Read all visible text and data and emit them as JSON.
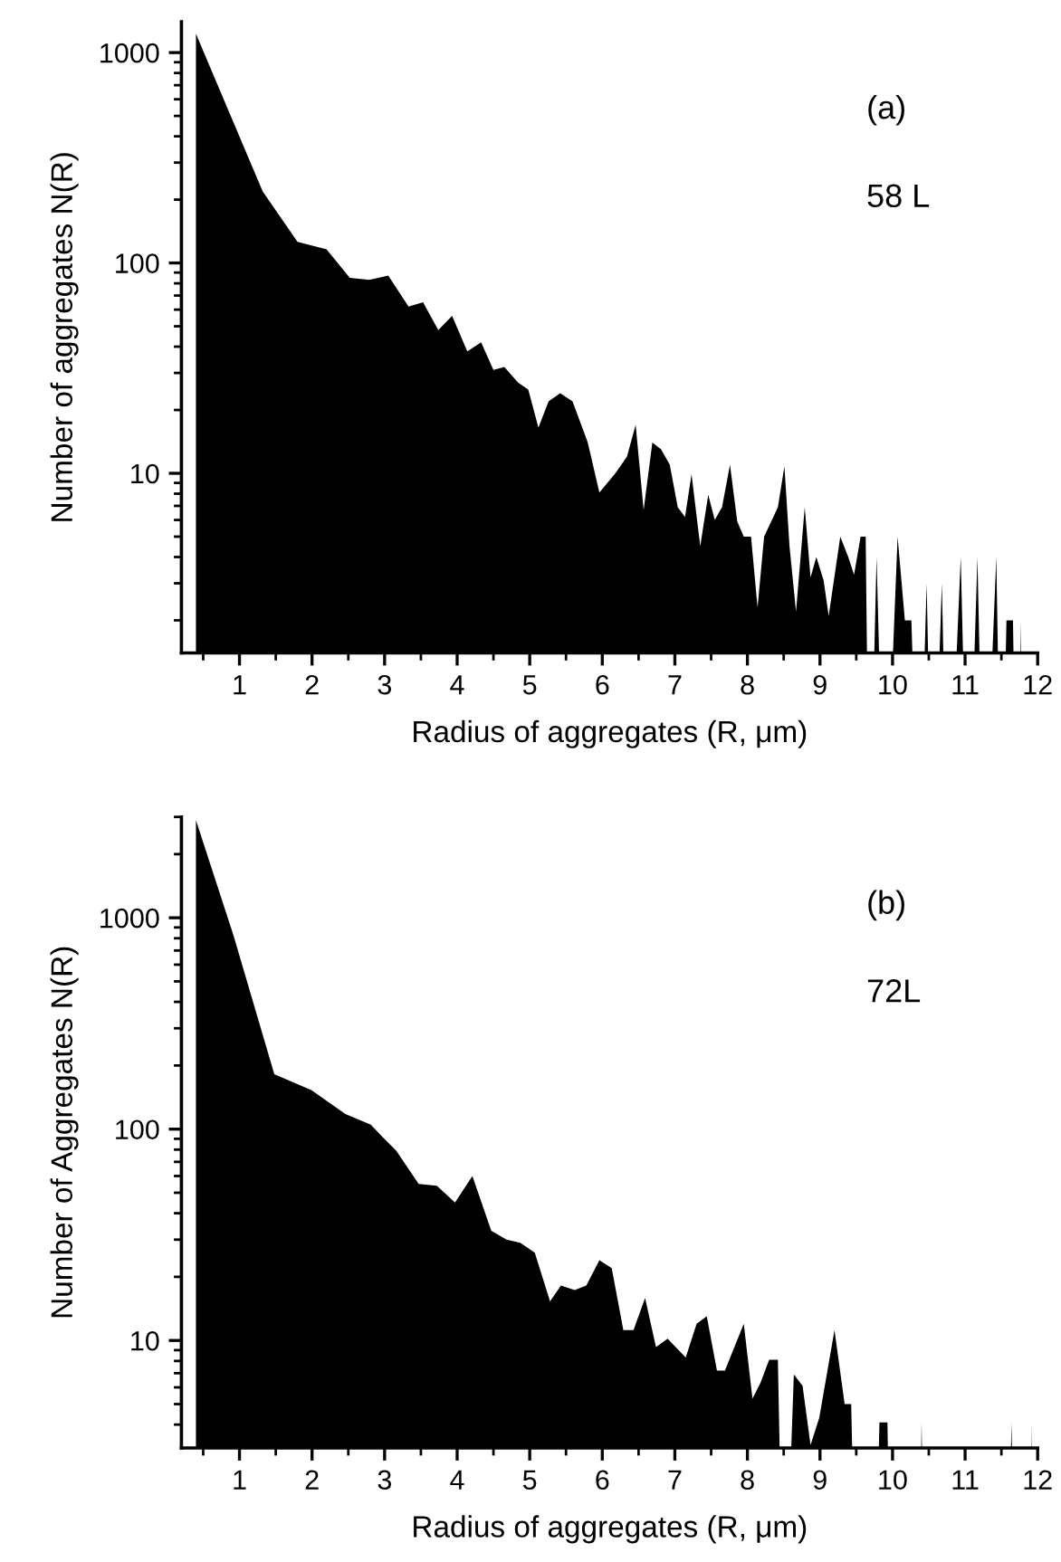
{
  "chart_data": [
    {
      "type": "area",
      "xlabel": "Radius of aggregates (R, μm)",
      "ylabel": "Number of aggregates N(R)",
      "annotations": [
        "(a)",
        "58 L"
      ],
      "log": "y",
      "grid": false,
      "legend": false,
      "xlim": [
        0.2,
        12
      ],
      "xticks": [
        1,
        2,
        3,
        4,
        5,
        6,
        7,
        8,
        9,
        10,
        11,
        12
      ],
      "ylim": [
        1.4,
        1400
      ],
      "yticks": [
        10,
        100,
        1000
      ],
      "series": [
        {
          "color": "#000000",
          "x": [
            0.4,
            1.32,
            1.8,
            2.2,
            2.52,
            2.79,
            3.05,
            3.33,
            3.53,
            3.74,
            3.93,
            4.14,
            4.33,
            4.5,
            4.65,
            4.84,
            4.98,
            5.12,
            5.26,
            5.42,
            5.59,
            5.8,
            5.96,
            6.18,
            6.34,
            6.46,
            6.57,
            6.69,
            6.81,
            6.93,
            7.04,
            7.14,
            7.23,
            7.35,
            7.46,
            7.55,
            7.65,
            7.76,
            7.86,
            7.95,
            8.05,
            8.14,
            8.23,
            8.42,
            8.51,
            8.58,
            8.67,
            8.79,
            8.87,
            8.95,
            9.05,
            9.12,
            9.28,
            9.39,
            9.47,
            9.56,
            9.63,
            9.68,
            9.78,
            9.89,
            10.07,
            10.17,
            10.26,
            10.36,
            10.47,
            10.55,
            10.68,
            10.76,
            10.94,
            11.04,
            11.17,
            11.26,
            11.43,
            11.5,
            11.57,
            11.66,
            11.71,
            11.77
          ],
          "values": [
            1230,
            219,
            126,
            116,
            85,
            83,
            87,
            62,
            65,
            48,
            56,
            38,
            42,
            31,
            32,
            27,
            25,
            16.5,
            22,
            24,
            22,
            14,
            8.1,
            10,
            12,
            17,
            6.7,
            14,
            13,
            11,
            6.9,
            6.2,
            9.9,
            4.5,
            7.9,
            6.0,
            6.9,
            11,
            5.9,
            5.0,
            5.0,
            2.3,
            5.0,
            6.9,
            10.8,
            4.5,
            2.2,
            6.9,
            3.2,
            4.0,
            3.1,
            2.1,
            5.0,
            4.0,
            3.3,
            5.0,
            5.0,
            null,
            4.0,
            null,
            5.0,
            2.0,
            2.0,
            null,
            3.0,
            null,
            3.0,
            null,
            4.0,
            null,
            4.0,
            null,
            4.0,
            null,
            2.0,
            2.0,
            null,
            2.0
          ]
        }
      ]
    },
    {
      "type": "area",
      "xlabel": "Radius of aggregates (R, μm)",
      "ylabel": "Number of Aggregates N(R)",
      "annotations": [
        "(b)",
        "72L"
      ],
      "log": "y",
      "grid": false,
      "legend": false,
      "xlim": [
        0.2,
        12
      ],
      "xticks": [
        1,
        2,
        3,
        4,
        5,
        6,
        7,
        8,
        9,
        10,
        11,
        12
      ],
      "ylim": [
        3.1,
        3000
      ],
      "yticks": [
        10,
        100,
        1000
      ],
      "series": [
        {
          "color": "#000000",
          "x": [
            0.4,
            0.92,
            1.48,
            1.99,
            2.46,
            2.81,
            2.97,
            3.16,
            3.47,
            3.72,
            3.97,
            4.21,
            4.47,
            4.68,
            4.87,
            5.07,
            5.28,
            5.43,
            5.62,
            5.78,
            5.96,
            6.13,
            6.29,
            6.43,
            6.59,
            6.74,
            6.9,
            7.15,
            7.3,
            7.44,
            7.58,
            7.69,
            7.95,
            8.07,
            8.18,
            8.3,
            8.42,
            8.5,
            8.64,
            8.76,
            8.87,
            8.99,
            9.2,
            9.34,
            9.43,
            9.51,
            9.74,
            9.82,
            9.93,
            9.98,
            10.36,
            10.4,
            10.45,
            11.57,
            11.64,
            11.69,
            11.88,
            11.92
          ],
          "values": [
            2900,
            820,
            182,
            153,
            118,
            105,
            92,
            79,
            55,
            54,
            45,
            60,
            33,
            30,
            29,
            26,
            15.3,
            18.2,
            17.3,
            18.2,
            24,
            22,
            11.2,
            11.2,
            15.9,
            9.3,
            10.2,
            8.3,
            12,
            13,
            7.2,
            7.2,
            12,
            5.3,
            6.3,
            8.1,
            8.1,
            null,
            6.9,
            6.1,
            3.2,
            4.3,
            11.2,
            5.0,
            5.0,
            null,
            null,
            4.1,
            4.1,
            null,
            null,
            4.1,
            null,
            null,
            4.1,
            null,
            null,
            4.1
          ]
        }
      ]
    }
  ]
}
